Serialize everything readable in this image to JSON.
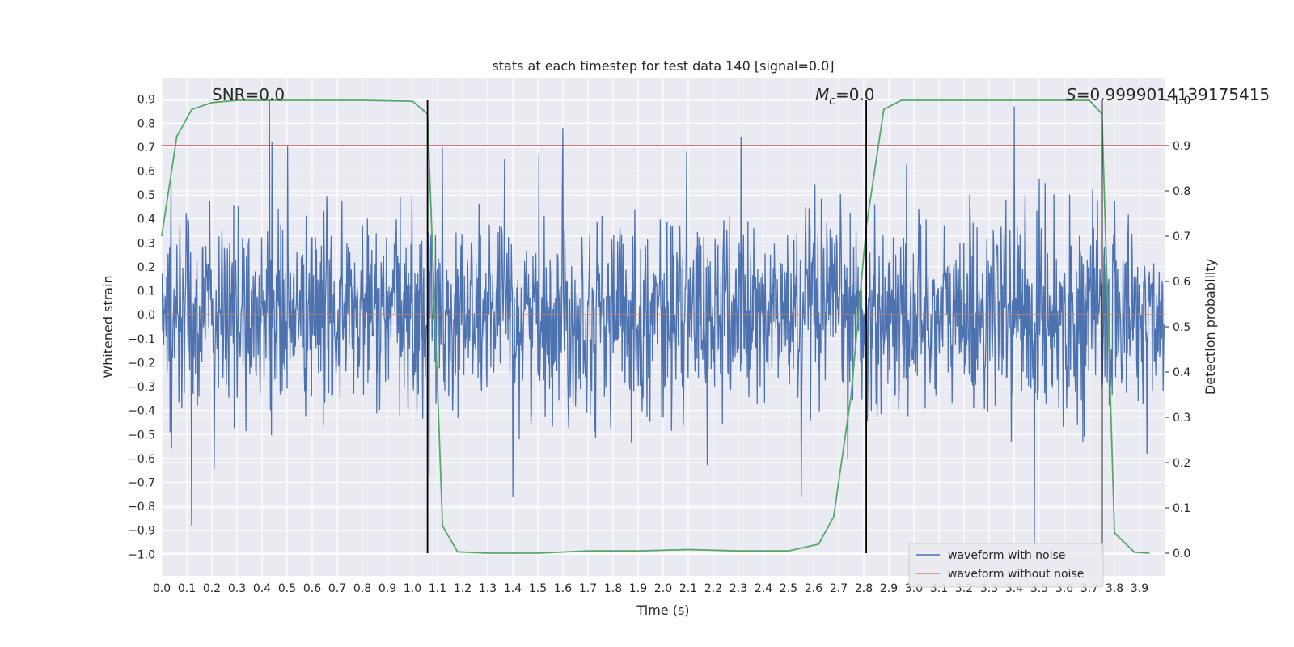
{
  "chart_data": {
    "type": "line",
    "title": "stats at each timestep for test data 140 [signal=0.0]",
    "xlabel": "Time (s)",
    "ylabel": "Whitened strain",
    "y2label": "Detection probability",
    "xlim": [
      0.0,
      4.0
    ],
    "ylim": [
      -1.09,
      0.99
    ],
    "y2lim": [
      -0.05,
      1.05
    ],
    "grid": true,
    "xticks": [
      "0.0",
      "0.1",
      "0.2",
      "0.3",
      "0.4",
      "0.5",
      "0.6",
      "0.7",
      "0.8",
      "0.9",
      "1.0",
      "1.1",
      "1.2",
      "1.3",
      "1.4",
      "1.5",
      "1.6",
      "1.7",
      "1.8",
      "1.9",
      "2.0",
      "2.1",
      "2.2",
      "2.3",
      "2.4",
      "2.5",
      "2.6",
      "2.7",
      "2.8",
      "2.9",
      "3.0",
      "3.1",
      "3.2",
      "3.3",
      "3.4",
      "3.5",
      "3.6",
      "3.7",
      "3.8",
      "3.9"
    ],
    "yticks": [
      "−1.0",
      "−0.9",
      "−0.8",
      "−0.7",
      "−0.6",
      "−0.5",
      "−0.4",
      "−0.3",
      "−0.2",
      "−0.1",
      "0.0",
      "0.1",
      "0.2",
      "0.3",
      "0.4",
      "0.5",
      "0.6",
      "0.7",
      "0.8",
      "0.9"
    ],
    "y2ticks": [
      "0.0",
      "0.1",
      "0.2",
      "0.3",
      "0.4",
      "0.5",
      "0.6",
      "0.7",
      "0.8",
      "0.9",
      "1.0"
    ],
    "annotations": {
      "snr": "SNR=0.0",
      "mc_symbol": "M",
      "mc_sub": "c",
      "mc_value": "=0.0",
      "s_symbol": "S",
      "s_value": "=0.9999014139175415"
    },
    "vertical_lines_x": [
      1.06,
      2.81,
      3.75
    ],
    "threshold_y2": 0.9,
    "noisy_waveform": {
      "name": "waveform with noise",
      "color": "#4c72b0",
      "sample_rate": 512,
      "typical_amplitude": 0.2,
      "spikes": [
        {
          "x": 0.12,
          "y": -0.88
        },
        {
          "x": 0.43,
          "y": 0.9
        },
        {
          "x": 0.44,
          "y": 0.72
        },
        {
          "x": 1.12,
          "y": 0.7
        },
        {
          "x": 1.6,
          "y": 0.78
        },
        {
          "x": 1.4,
          "y": -0.76
        },
        {
          "x": 2.31,
          "y": 0.74
        },
        {
          "x": 2.55,
          "y": -0.76
        },
        {
          "x": 3.4,
          "y": 0.87
        },
        {
          "x": 3.48,
          "y": -0.97
        },
        {
          "x": 3.93,
          "y": -0.58
        }
      ]
    },
    "clean_waveform": {
      "name": "waveform without noise",
      "color": "#dd8452",
      "value": 0.0
    },
    "detection_probability": {
      "color": "#55a868",
      "x": [
        0.0,
        0.06,
        0.12,
        0.2,
        0.3,
        0.5,
        0.8,
        1.0,
        1.06,
        1.12,
        1.18,
        1.3,
        1.5,
        1.7,
        1.9,
        2.1,
        2.3,
        2.5,
        2.62,
        2.68,
        2.75,
        2.81,
        2.88,
        2.95,
        3.1,
        3.5,
        3.7,
        3.75,
        3.8,
        3.88,
        3.94
      ],
      "y": [
        0.7,
        0.92,
        0.98,
        0.995,
        1.0,
        1.0,
        1.0,
        0.998,
        0.97,
        0.06,
        0.003,
        0.0,
        0.0,
        0.005,
        0.005,
        0.008,
        0.005,
        0.005,
        0.02,
        0.08,
        0.35,
        0.72,
        0.98,
        1.0,
        1.0,
        1.0,
        1.0,
        0.97,
        0.045,
        0.002,
        0.0
      ]
    },
    "threshold_line": {
      "color": "#c44e52"
    },
    "legend": {
      "location": "bottom-right",
      "entries": [
        "waveform with noise",
        "waveform without noise"
      ]
    }
  }
}
